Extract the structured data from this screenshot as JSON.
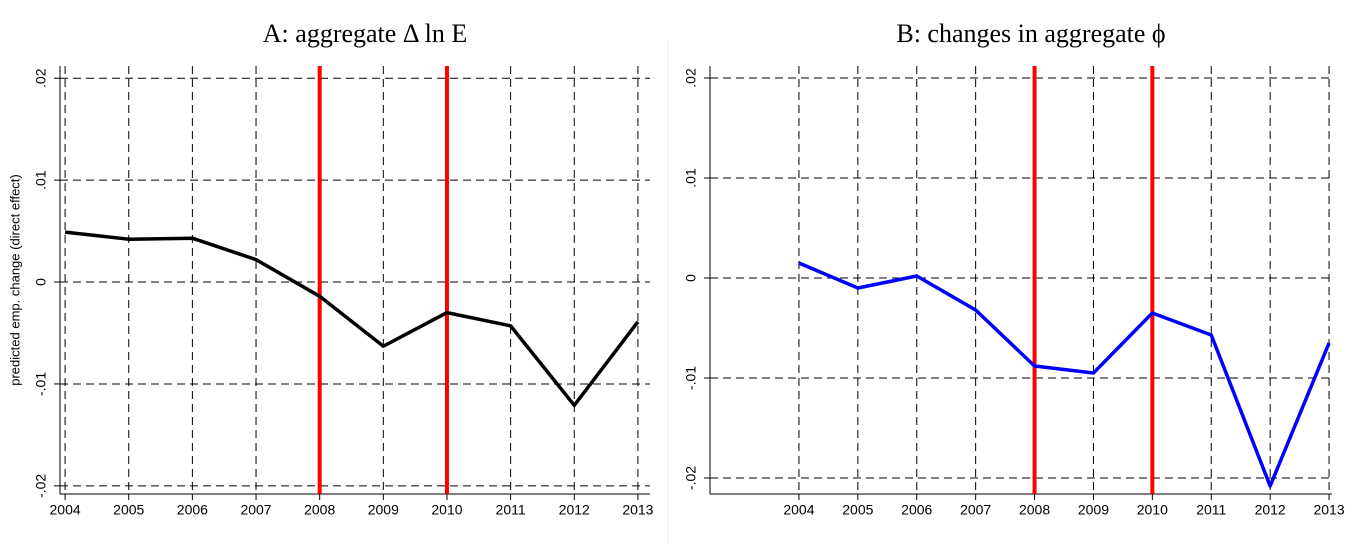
{
  "chart_data": [
    {
      "type": "line",
      "title": "A: aggregate Δ ln E",
      "ylabel": "predicted emp. change (direct effect)",
      "x": [
        2004,
        2005,
        2006,
        2007,
        2008,
        2009,
        2010,
        2011,
        2012,
        2013
      ],
      "values": [
        0.0049,
        0.0042,
        0.0043,
        0.0022,
        -0.0014,
        -0.0063,
        -0.003,
        -0.0043,
        -0.0121,
        -0.0039
      ],
      "color": "#000000",
      "xlim": [
        2003.92,
        2013.19
      ],
      "xticks": [
        2004,
        2005,
        2006,
        2007,
        2008,
        2009,
        2010,
        2011,
        2012,
        2013
      ],
      "ylim": [
        -0.0208,
        0.0212
      ],
      "yticks": [
        {
          "value": -0.02,
          "label": "-.02"
        },
        {
          "value": -0.01,
          "label": "-.01"
        },
        0,
        {
          "value": 0.01,
          "label": ".01"
        },
        {
          "value": 0.02,
          "label": ".02"
        }
      ],
      "vlines": {
        "values": [
          2008,
          2010
        ],
        "color": "#ff0000"
      },
      "grid": true
    },
    {
      "type": "line",
      "title": "B: changes in aggregate ϕ",
      "x": [
        2004,
        2005,
        2006,
        2007,
        2008,
        2009,
        2010,
        2011,
        2012,
        2013
      ],
      "values": [
        0.0015,
        -0.001,
        0.0002,
        -0.0032,
        -0.0088,
        -0.0095,
        -0.0035,
        -0.0057,
        -0.0208,
        -0.0065
      ],
      "color": "#0000ff",
      "xlim": [
        2002.49,
        2013.05
      ],
      "xticks": [
        2004,
        2005,
        2006,
        2007,
        2008,
        2009,
        2010,
        2011,
        2012,
        2013
      ],
      "ylim": [
        -0.0216,
        0.0212
      ],
      "yticks": [
        {
          "value": -0.02,
          "label": "-.02"
        },
        {
          "value": -0.01,
          "label": "-.01"
        },
        0,
        {
          "value": 0.01,
          "label": ".01"
        },
        {
          "value": 0.02,
          "label": ".02"
        }
      ],
      "vlines": {
        "values": [
          2008,
          2010
        ],
        "color": "#ff0000"
      },
      "grid": true
    }
  ]
}
